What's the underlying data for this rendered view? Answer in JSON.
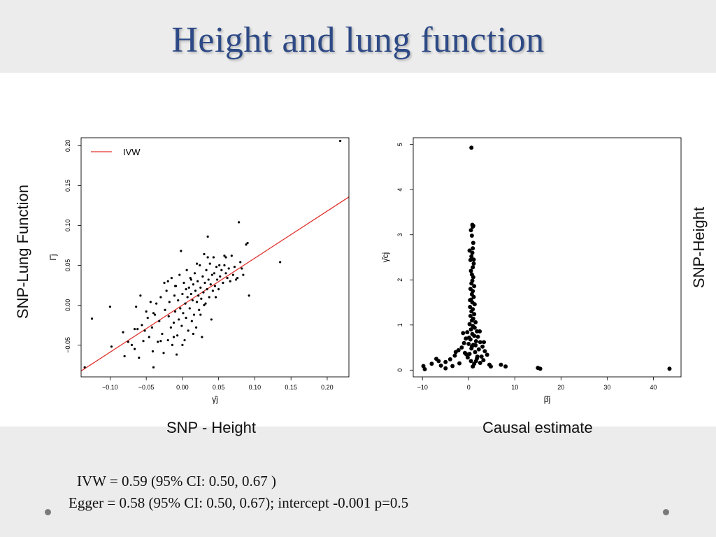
{
  "slide": {
    "title": "Height and lung function",
    "y_label_left": "SNP-Lung Function",
    "y_label_right": "SNP-Height",
    "caption_left": "SNP - Height",
    "caption_right": "Causal estimate",
    "stats_ivw": "IVW = 0.59 (95% CI: 0.50, 0.67 )",
    "stats_egger": "Egger = 0.58 (95% CI: 0.50, 0.67); intercept -0.001 p=0.5"
  },
  "chart_data": [
    {
      "type": "scatter",
      "xlabel": "γ̂j",
      "ylabel": "Γ̂j",
      "xlim": [
        -0.14,
        0.23
      ],
      "ylim": [
        -0.09,
        0.21
      ],
      "x_ticks": [
        -0.1,
        -0.05,
        0.0,
        0.05,
        0.1,
        0.15,
        0.2
      ],
      "x_tick_labels": [
        "−0.10",
        "−0.05",
        "0.00",
        "0.05",
        "0.10",
        "0.15",
        "0.20"
      ],
      "y_ticks": [
        -0.05,
        0.0,
        0.05,
        0.1,
        0.15,
        0.2
      ],
      "y_tick_labels": [
        "−0.05",
        "0.00",
        "0.05",
        "0.10",
        "0.15",
        "0.20"
      ],
      "legend": {
        "position": "top-left",
        "label": "IVW",
        "color": "#e0332e"
      },
      "ivw_line": {
        "slope": 0.59,
        "intercept": 0.0,
        "color": "#e0332e"
      },
      "point_color": "#000000",
      "points": [
        [
          -0.135,
          -0.078
        ],
        [
          -0.125,
          -0.017
        ],
        [
          -0.1,
          -0.002
        ],
        [
          -0.098,
          -0.052
        ],
        [
          -0.082,
          -0.034
        ],
        [
          -0.08,
          -0.064
        ],
        [
          -0.075,
          -0.046
        ],
        [
          -0.07,
          -0.05
        ],
        [
          -0.066,
          -0.03
        ],
        [
          -0.064,
          -0.002
        ],
        [
          -0.062,
          -0.03
        ],
        [
          -0.06,
          -0.066
        ],
        [
          -0.058,
          0.012
        ],
        [
          -0.056,
          -0.025
        ],
        [
          -0.054,
          -0.045
        ],
        [
          -0.052,
          -0.032
        ],
        [
          -0.05,
          -0.008
        ],
        [
          -0.048,
          -0.016
        ],
        [
          -0.046,
          -0.04
        ],
        [
          -0.044,
          0.004
        ],
        [
          -0.042,
          -0.028
        ],
        [
          -0.04,
          -0.078
        ],
        [
          -0.038,
          -0.012
        ],
        [
          -0.036,
          0.002
        ],
        [
          -0.034,
          -0.046
        ],
        [
          -0.032,
          -0.02
        ],
        [
          -0.03,
          0.01
        ],
        [
          -0.028,
          -0.036
        ],
        [
          -0.026,
          -0.06
        ],
        [
          -0.025,
          0.028
        ],
        [
          -0.024,
          -0.006
        ],
        [
          -0.022,
          0.018
        ],
        [
          -0.02,
          -0.044
        ],
        [
          -0.019,
          -0.014
        ],
        [
          -0.018,
          0.004
        ],
        [
          -0.016,
          -0.028
        ],
        [
          -0.015,
          0.034
        ],
        [
          -0.014,
          -0.05
        ],
        [
          -0.012,
          -0.022
        ],
        [
          -0.011,
          0.012
        ],
        [
          -0.01,
          -0.008
        ],
        [
          -0.009,
          0.024
        ],
        [
          -0.008,
          -0.062
        ],
        [
          -0.007,
          -0.038
        ],
        [
          -0.006,
          0.006
        ],
        [
          -0.005,
          -0.018
        ],
        [
          -0.004,
          0.038
        ],
        [
          -0.003,
          -0.004
        ],
        [
          -0.002,
          0.068
        ],
        [
          -0.001,
          -0.026
        ],
        [
          0.0,
          0.014
        ],
        [
          0.001,
          -0.01
        ],
        [
          0.002,
          0.028
        ],
        [
          0.003,
          -0.044
        ],
        [
          0.004,
          0.002
        ],
        [
          0.005,
          -0.016
        ],
        [
          0.006,
          0.044
        ],
        [
          0.007,
          0.01
        ],
        [
          0.008,
          -0.032
        ],
        [
          0.009,
          0.022
        ],
        [
          0.01,
          -0.004
        ],
        [
          0.011,
          0.034
        ],
        [
          0.012,
          0.014
        ],
        [
          0.013,
          -0.02
        ],
        [
          0.014,
          0.006
        ],
        [
          0.015,
          0.026
        ],
        [
          0.016,
          -0.012
        ],
        [
          0.017,
          0.04
        ],
        [
          0.018,
          0.018
        ],
        [
          0.019,
          -0.028
        ],
        [
          0.02,
          0.004
        ],
        [
          0.021,
          0.03
        ],
        [
          0.022,
          0.012
        ],
        [
          0.023,
          -0.006
        ],
        [
          0.024,
          0.05
        ],
        [
          0.025,
          0.022
        ],
        [
          0.026,
          0.008
        ],
        [
          0.027,
          -0.04
        ],
        [
          0.028,
          0.036
        ],
        [
          0.029,
          0.016
        ],
        [
          0.03,
          0.064
        ],
        [
          0.031,
          0.028
        ],
        [
          0.032,
          0.002
        ],
        [
          0.033,
          0.044
        ],
        [
          0.034,
          0.02
        ],
        [
          0.035,
          0.086
        ],
        [
          0.036,
          0.032
        ],
        [
          0.037,
          0.01
        ],
        [
          0.038,
          0.052
        ],
        [
          0.039,
          0.026
        ],
        [
          0.04,
          -0.018
        ],
        [
          0.041,
          0.038
        ],
        [
          0.042,
          0.018
        ],
        [
          0.043,
          0.06
        ],
        [
          0.044,
          0.04
        ],
        [
          0.045,
          0.024
        ],
        [
          0.047,
          0.048
        ],
        [
          0.048,
          0.032
        ],
        [
          0.05,
          0.02
        ],
        [
          0.051,
          0.05
        ],
        [
          0.052,
          0.036
        ],
        [
          0.054,
          0.044
        ],
        [
          0.056,
          0.028
        ],
        [
          0.058,
          0.05
        ],
        [
          0.06,
          0.04
        ],
        [
          0.062,
          0.034
        ],
        [
          0.064,
          0.046
        ],
        [
          0.066,
          0.03
        ],
        [
          0.068,
          0.062
        ],
        [
          0.07,
          0.038
        ],
        [
          0.072,
          0.048
        ],
        [
          0.074,
          0.032
        ],
        [
          0.076,
          0.034
        ],
        [
          0.078,
          0.104
        ],
        [
          0.08,
          0.054
        ],
        [
          0.082,
          0.046
        ],
        [
          0.084,
          0.038
        ],
        [
          0.088,
          0.076
        ],
        [
          0.09,
          0.078
        ],
        [
          0.092,
          0.012
        ],
        [
          0.135,
          0.054
        ],
        [
          0.218,
          0.206
        ],
        [
          -0.066,
          -0.055
        ],
        [
          -0.041,
          -0.058
        ],
        [
          -0.01,
          0.024
        ],
        [
          0.0,
          -0.05
        ],
        [
          0.012,
          0.032
        ],
        [
          0.03,
          0.0
        ],
        [
          0.046,
          0.01
        ],
        [
          0.058,
          0.062
        ],
        [
          -0.03,
          -0.045
        ],
        [
          -0.02,
          0.03
        ],
        [
          0.005,
          0.02
        ],
        [
          0.015,
          -0.036
        ],
        [
          0.035,
          0.06
        ],
        [
          0.06,
          0.06
        ],
        [
          -0.04,
          -0.01
        ],
        [
          0.02,
          0.052
        ],
        [
          -0.012,
          -0.04
        ],
        [
          0.025,
          -0.012
        ]
      ]
    },
    {
      "type": "scatter",
      "xlabel": "β̂j",
      "ylabel": "γ̂cj",
      "xlim": [
        -12,
        46
      ],
      "ylim": [
        -0.15,
        5.15
      ],
      "x_ticks": [
        -10,
        0,
        10,
        20,
        30,
        40
      ],
      "x_tick_labels": [
        "−10",
        "0",
        "10",
        "20",
        "30",
        "40"
      ],
      "y_ticks": [
        0,
        1,
        2,
        3,
        4,
        5
      ],
      "y_tick_labels": [
        "0",
        "1",
        "2",
        "3",
        "4",
        "5"
      ],
      "point_color": "#000000",
      "points": [
        [
          0.6,
          4.93
        ],
        [
          0.8,
          3.22
        ],
        [
          0.9,
          3.18
        ],
        [
          1.0,
          3.2
        ],
        [
          0.5,
          3.1
        ],
        [
          0.7,
          2.98
        ],
        [
          1.0,
          2.82
        ],
        [
          0.9,
          2.7
        ],
        [
          0.8,
          2.6
        ],
        [
          0.6,
          2.52
        ],
        [
          0.4,
          2.44
        ],
        [
          1.1,
          2.36
        ],
        [
          0.9,
          2.28
        ],
        [
          0.5,
          2.2
        ],
        [
          0.7,
          2.12
        ],
        [
          1.0,
          2.06
        ],
        [
          0.8,
          1.98
        ],
        [
          0.6,
          1.92
        ],
        [
          1.2,
          1.86
        ],
        [
          0.4,
          1.8
        ],
        [
          0.9,
          1.75
        ],
        [
          0.7,
          1.68
        ],
        [
          1.1,
          1.62
        ],
        [
          0.5,
          1.56
        ],
        [
          0.8,
          1.5
        ],
        [
          1.3,
          1.46
        ],
        [
          0.3,
          1.4
        ],
        [
          0.9,
          1.35
        ],
        [
          0.6,
          1.3
        ],
        [
          1.2,
          1.24
        ],
        [
          0.4,
          1.2
        ],
        [
          1.0,
          1.14
        ],
        [
          0.7,
          1.1
        ],
        [
          1.5,
          1.06
        ],
        [
          0.2,
          1.02
        ],
        [
          0.9,
          0.98
        ],
        [
          1.3,
          0.94
        ],
        [
          0.5,
          0.9
        ],
        [
          1.8,
          0.86
        ],
        [
          -0.3,
          0.84
        ],
        [
          0.8,
          0.8
        ],
        [
          1.2,
          0.76
        ],
        [
          2.0,
          0.74
        ],
        [
          -0.6,
          0.7
        ],
        [
          0.4,
          0.68
        ],
        [
          1.6,
          0.64
        ],
        [
          2.5,
          0.62
        ],
        [
          -1.0,
          0.6
        ],
        [
          0.0,
          0.58
        ],
        [
          1.0,
          0.56
        ],
        [
          3.0,
          0.52
        ],
        [
          -1.5,
          0.5
        ],
        [
          0.6,
          0.48
        ],
        [
          2.2,
          0.46
        ],
        [
          -2.2,
          0.44
        ],
        [
          3.5,
          0.42
        ],
        [
          1.4,
          0.4
        ],
        [
          -0.8,
          0.38
        ],
        [
          0.2,
          0.36
        ],
        [
          4.0,
          0.34
        ],
        [
          -3.0,
          0.32
        ],
        [
          2.8,
          0.3
        ],
        [
          -0.2,
          0.28
        ],
        [
          1.8,
          0.26
        ],
        [
          -4.0,
          0.24
        ],
        [
          3.2,
          0.22
        ],
        [
          0.5,
          0.2
        ],
        [
          -5.0,
          0.18
        ],
        [
          2.5,
          0.16
        ],
        [
          -2.0,
          0.15
        ],
        [
          1.2,
          0.14
        ],
        [
          4.5,
          0.12
        ],
        [
          -6.0,
          0.1
        ],
        [
          -3.5,
          0.09
        ],
        [
          0.9,
          0.08
        ],
        [
          7.0,
          0.12
        ],
        [
          8.0,
          0.08
        ],
        [
          -8.0,
          0.14
        ],
        [
          -6.5,
          0.2
        ],
        [
          -7.0,
          0.25
        ],
        [
          -9.8,
          0.09
        ],
        [
          -9.5,
          0.02
        ],
        [
          -5.0,
          0.04
        ],
        [
          15.0,
          0.05
        ],
        [
          15.5,
          0.03
        ],
        [
          43.5,
          0.03
        ],
        [
          3.3,
          0.62
        ],
        [
          -1.2,
          0.82
        ],
        [
          1.9,
          0.3
        ],
        [
          0.1,
          0.72
        ],
        [
          1.5,
          0.55
        ],
        [
          -0.5,
          0.35
        ],
        [
          2.4,
          0.86
        ],
        [
          0.3,
          1.55
        ],
        [
          1.1,
          2.45
        ],
        [
          0.2,
          2.65
        ],
        [
          1.6,
          0.2
        ],
        [
          -2.8,
          0.4
        ],
        [
          0.7,
          0.52
        ],
        [
          4.8,
          0.08
        ]
      ]
    }
  ]
}
